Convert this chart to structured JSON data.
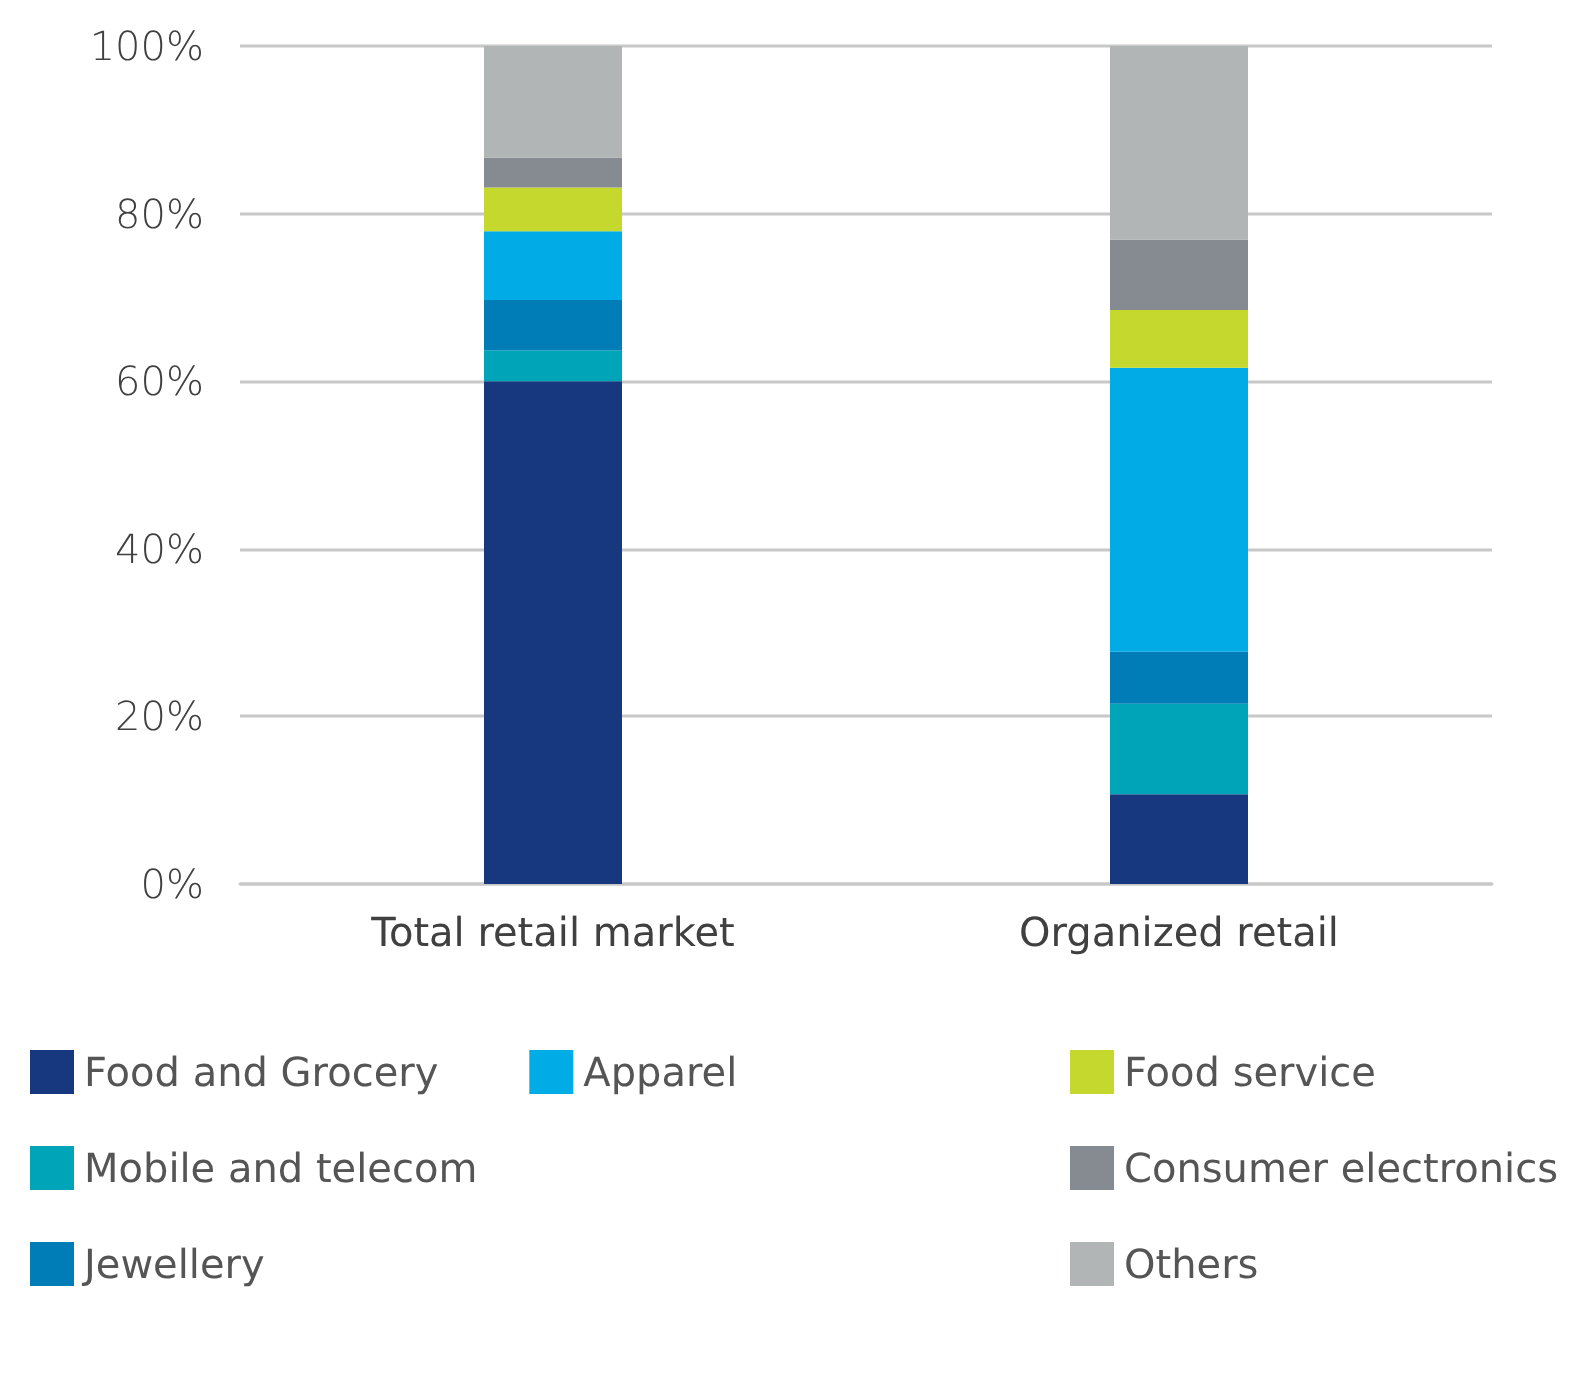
{
  "chart_data": {
    "type": "bar",
    "stacked": true,
    "categories": [
      "Total retail market",
      "Organized retail"
    ],
    "series": [
      {
        "name": "Food and Grocery",
        "color": "#17387e",
        "values": [
          60,
          10.7
        ]
      },
      {
        "name": "Mobile and telecom",
        "color": "#00a4b8",
        "values": [
          3.7,
          10.8
        ]
      },
      {
        "name": "Jewellery",
        "color": "#007cb6",
        "values": [
          6,
          6.2
        ]
      },
      {
        "name": "Apparel",
        "color": "#00abe6",
        "values": [
          8.2,
          33.9
        ]
      },
      {
        "name": "Food service",
        "color": "#c5d82d",
        "values": [
          5.2,
          6.9
        ]
      },
      {
        "name": "Consumer electronics",
        "color": "#868a91",
        "values": [
          3.6,
          8.4
        ]
      },
      {
        "name": "Others",
        "color": "#b2b5b6",
        "values": [
          13.3,
          23.1
        ]
      }
    ],
    "ylim": [
      0,
      100
    ],
    "yticks": [
      {
        "value": 0,
        "label": "0%"
      },
      {
        "value": 20,
        "label": "20%"
      },
      {
        "value": 40,
        "label": "40%"
      },
      {
        "value": 60,
        "label": "60%"
      },
      {
        "value": 80,
        "label": "80%"
      },
      {
        "value": 100,
        "label": "100%"
      }
    ],
    "grid": "y",
    "legend": "bottom"
  }
}
